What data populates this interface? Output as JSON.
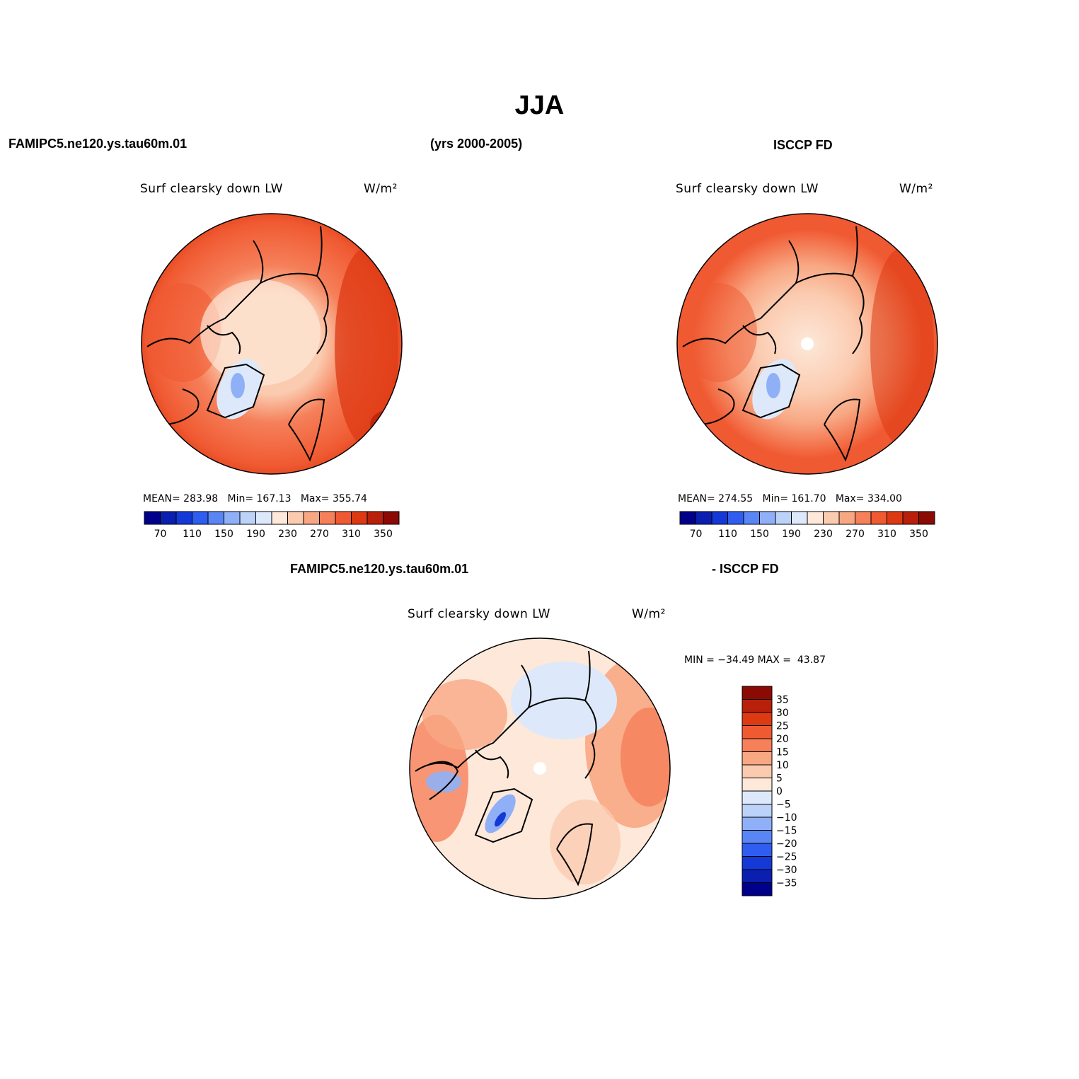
{
  "header": {
    "season": "JJA",
    "model_case": "FAMIPC5.ne120.ys.tau60m.01",
    "years": "(yrs 2000-2005)",
    "obs_name": "ISCCP FD"
  },
  "panels": {
    "model": {
      "variable": "Surf clearsky down LW",
      "units": "W/m²",
      "stats_text": "MEAN= 283.98   Min= 167.13   Max= 355.74"
    },
    "obs": {
      "variable": "Surf clearsky down LW",
      "units": "W/m²",
      "stats_text": "MEAN= 274.55   Min= 161.70   Max= 334.00"
    },
    "diff": {
      "title_left": "FAMIPC5.ne120.ys.tau60m.01",
      "title_right": "- ISCCP FD",
      "variable": "Surf clearsky down LW",
      "units": "W/m²",
      "minmax_text": "MIN = −34.49 MAX =  43.87"
    }
  },
  "colorbars": {
    "abs_colors": [
      "#00008b",
      "#0a1fb0",
      "#1439d6",
      "#2f5df0",
      "#5a86f5",
      "#8fb0f7",
      "#bdd2f9",
      "#dde9fb",
      "#fde8d9",
      "#fbcbb0",
      "#f8a783",
      "#f5805a",
      "#f05a32",
      "#dd3a14",
      "#b8200b",
      "#8b0a04"
    ],
    "abs_ticks": [
      "70",
      "110",
      "150",
      "190",
      "230",
      "270",
      "310",
      "350"
    ],
    "diff_colors": [
      "#8b0a04",
      "#b8200b",
      "#dd3a14",
      "#f05a32",
      "#f5805a",
      "#f8a783",
      "#fbcbb0",
      "#fde8d9",
      "#dde9fb",
      "#bdd2f9",
      "#8fb0f7",
      "#5a86f5",
      "#2f5df0",
      "#1439d6",
      "#0a1fb0",
      "#00008b"
    ],
    "diff_ticks": [
      "35",
      "30",
      "25",
      "20",
      "15",
      "10",
      "5",
      "0",
      "−5",
      "−10",
      "−15",
      "−20",
      "−25",
      "−30",
      "−35"
    ]
  },
  "icons": {
    "globe": "north-polar-stereographic-map"
  }
}
